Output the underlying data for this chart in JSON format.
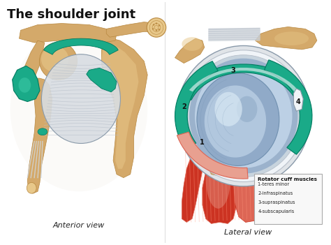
{
  "title": "The shoulder joint",
  "title_fontsize": 13,
  "title_fontweight": "bold",
  "bg_color": "#ffffff",
  "label_anterior": "Anterior view",
  "label_lateral": "Lateral view",
  "legend_title": "Rotator cuff muscles",
  "legend_items": [
    "1-teres minor",
    "2-infraspinatus",
    "3-supraspinatus",
    "4-subscapularis"
  ],
  "teal": "#1aaa88",
  "bone": "#d4a96a",
  "bone_light": "#e8c88a",
  "bone_dark": "#b88840",
  "lig_light": "#d8dde2",
  "lig_mid": "#b8c0ca",
  "lig_dark": "#8a9aaa",
  "red_muscle": "#cc3322",
  "red_light": "#dd6655",
  "red_pale": "#e8a090",
  "blue_dark": "#7090b0",
  "blue_mid": "#90aac8",
  "blue_light": "#c0d4e8",
  "blue_pale": "#d8e8f4",
  "white_ish": "#f0f4f8",
  "gray_light": "#e0e4e8",
  "gray_mid": "#c0c8d0"
}
